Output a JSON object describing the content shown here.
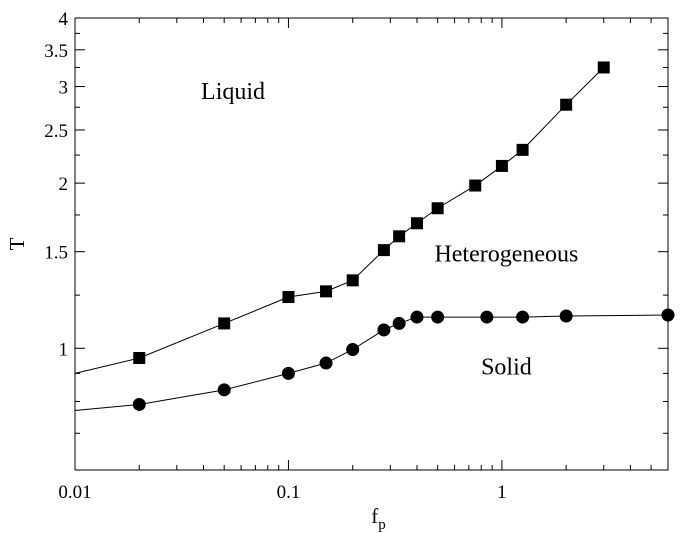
{
  "chart_data": {
    "type": "line",
    "x_scale": "log",
    "y_scale": "log",
    "xlabel": "f",
    "xlabel_subscript": "p",
    "ylabel": "T",
    "xlim": [
      0.01,
      6
    ],
    "ylim": [
      0.6,
      4
    ],
    "grid": false,
    "x_ticks": [
      {
        "value": 0.01,
        "label": "0.01"
      },
      {
        "value": 0.1,
        "label": "0.1"
      },
      {
        "value": 1,
        "label": "1"
      }
    ],
    "y_ticks": [
      {
        "value": 1,
        "label": "1"
      },
      {
        "value": 1.5,
        "label": "1.5"
      },
      {
        "value": 2,
        "label": "2"
      },
      {
        "value": 2.5,
        "label": "2.5"
      },
      {
        "value": 3,
        "label": "3"
      },
      {
        "value": 3.5,
        "label": "3.5"
      },
      {
        "value": 4,
        "label": "4"
      }
    ],
    "annotations": [
      {
        "text": "Liquid",
        "x": 0.055,
        "y": 2.85
      },
      {
        "text": "Heterogeneous",
        "x": 1.05,
        "y": 1.44
      },
      {
        "text": "Solid",
        "x": 1.05,
        "y": 0.895
      }
    ],
    "series": [
      {
        "marker": "square",
        "line_start": {
          "x": 0.01,
          "y": 0.9
        },
        "points": [
          {
            "x": 0.02,
            "y": 0.96
          },
          {
            "x": 0.05,
            "y": 1.11
          },
          {
            "x": 0.1,
            "y": 1.24
          },
          {
            "x": 0.15,
            "y": 1.27
          },
          {
            "x": 0.2,
            "y": 1.33
          },
          {
            "x": 0.28,
            "y": 1.51
          },
          {
            "x": 0.33,
            "y": 1.6
          },
          {
            "x": 0.4,
            "y": 1.69
          },
          {
            "x": 0.5,
            "y": 1.8
          },
          {
            "x": 0.75,
            "y": 1.98
          },
          {
            "x": 1.0,
            "y": 2.15
          },
          {
            "x": 1.25,
            "y": 2.3
          },
          {
            "x": 2.0,
            "y": 2.78
          },
          {
            "x": 3.0,
            "y": 3.25
          }
        ]
      },
      {
        "marker": "circle",
        "line_start": {
          "x": 0.01,
          "y": 0.77
        },
        "points": [
          {
            "x": 0.02,
            "y": 0.79
          },
          {
            "x": 0.05,
            "y": 0.84
          },
          {
            "x": 0.1,
            "y": 0.9
          },
          {
            "x": 0.15,
            "y": 0.94
          },
          {
            "x": 0.2,
            "y": 0.995
          },
          {
            "x": 0.28,
            "y": 1.08
          },
          {
            "x": 0.33,
            "y": 1.11
          },
          {
            "x": 0.4,
            "y": 1.14
          },
          {
            "x": 0.5,
            "y": 1.14
          },
          {
            "x": 0.85,
            "y": 1.14
          },
          {
            "x": 1.25,
            "y": 1.14
          },
          {
            "x": 2.0,
            "y": 1.145
          },
          {
            "x": 6.0,
            "y": 1.15
          }
        ]
      }
    ]
  }
}
